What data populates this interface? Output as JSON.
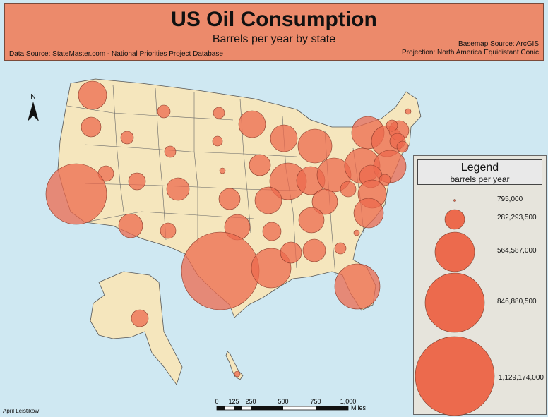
{
  "header": {
    "title": "US Oil Consumption",
    "subtitle": "Barrels per year by state",
    "data_source": "Data Source: StateMaster.com - National Priorities Project Database",
    "basemap_source": "Basemap Source: ArcGIS",
    "projection": "Projection: North America Equidistant Conic"
  },
  "north_arrow": {
    "label": "N"
  },
  "legend": {
    "title": "Legend",
    "subtitle": "barrels per year",
    "classes": [
      "795,000",
      "282,293,500",
      "564,587,000",
      "846,880,500",
      "1,129,174,000"
    ]
  },
  "scale_bar": {
    "ticks": [
      "0",
      "125",
      "250",
      "500",
      "750",
      "1,000"
    ],
    "unit": "Miles"
  },
  "author": "April Leistikow",
  "colors": {
    "water": "#cfe8f2",
    "land": "#f5e6bd",
    "symbol": "#ec6a4d",
    "header": "#ec8a6b",
    "legend_bg": "#e6e4dc"
  }
}
